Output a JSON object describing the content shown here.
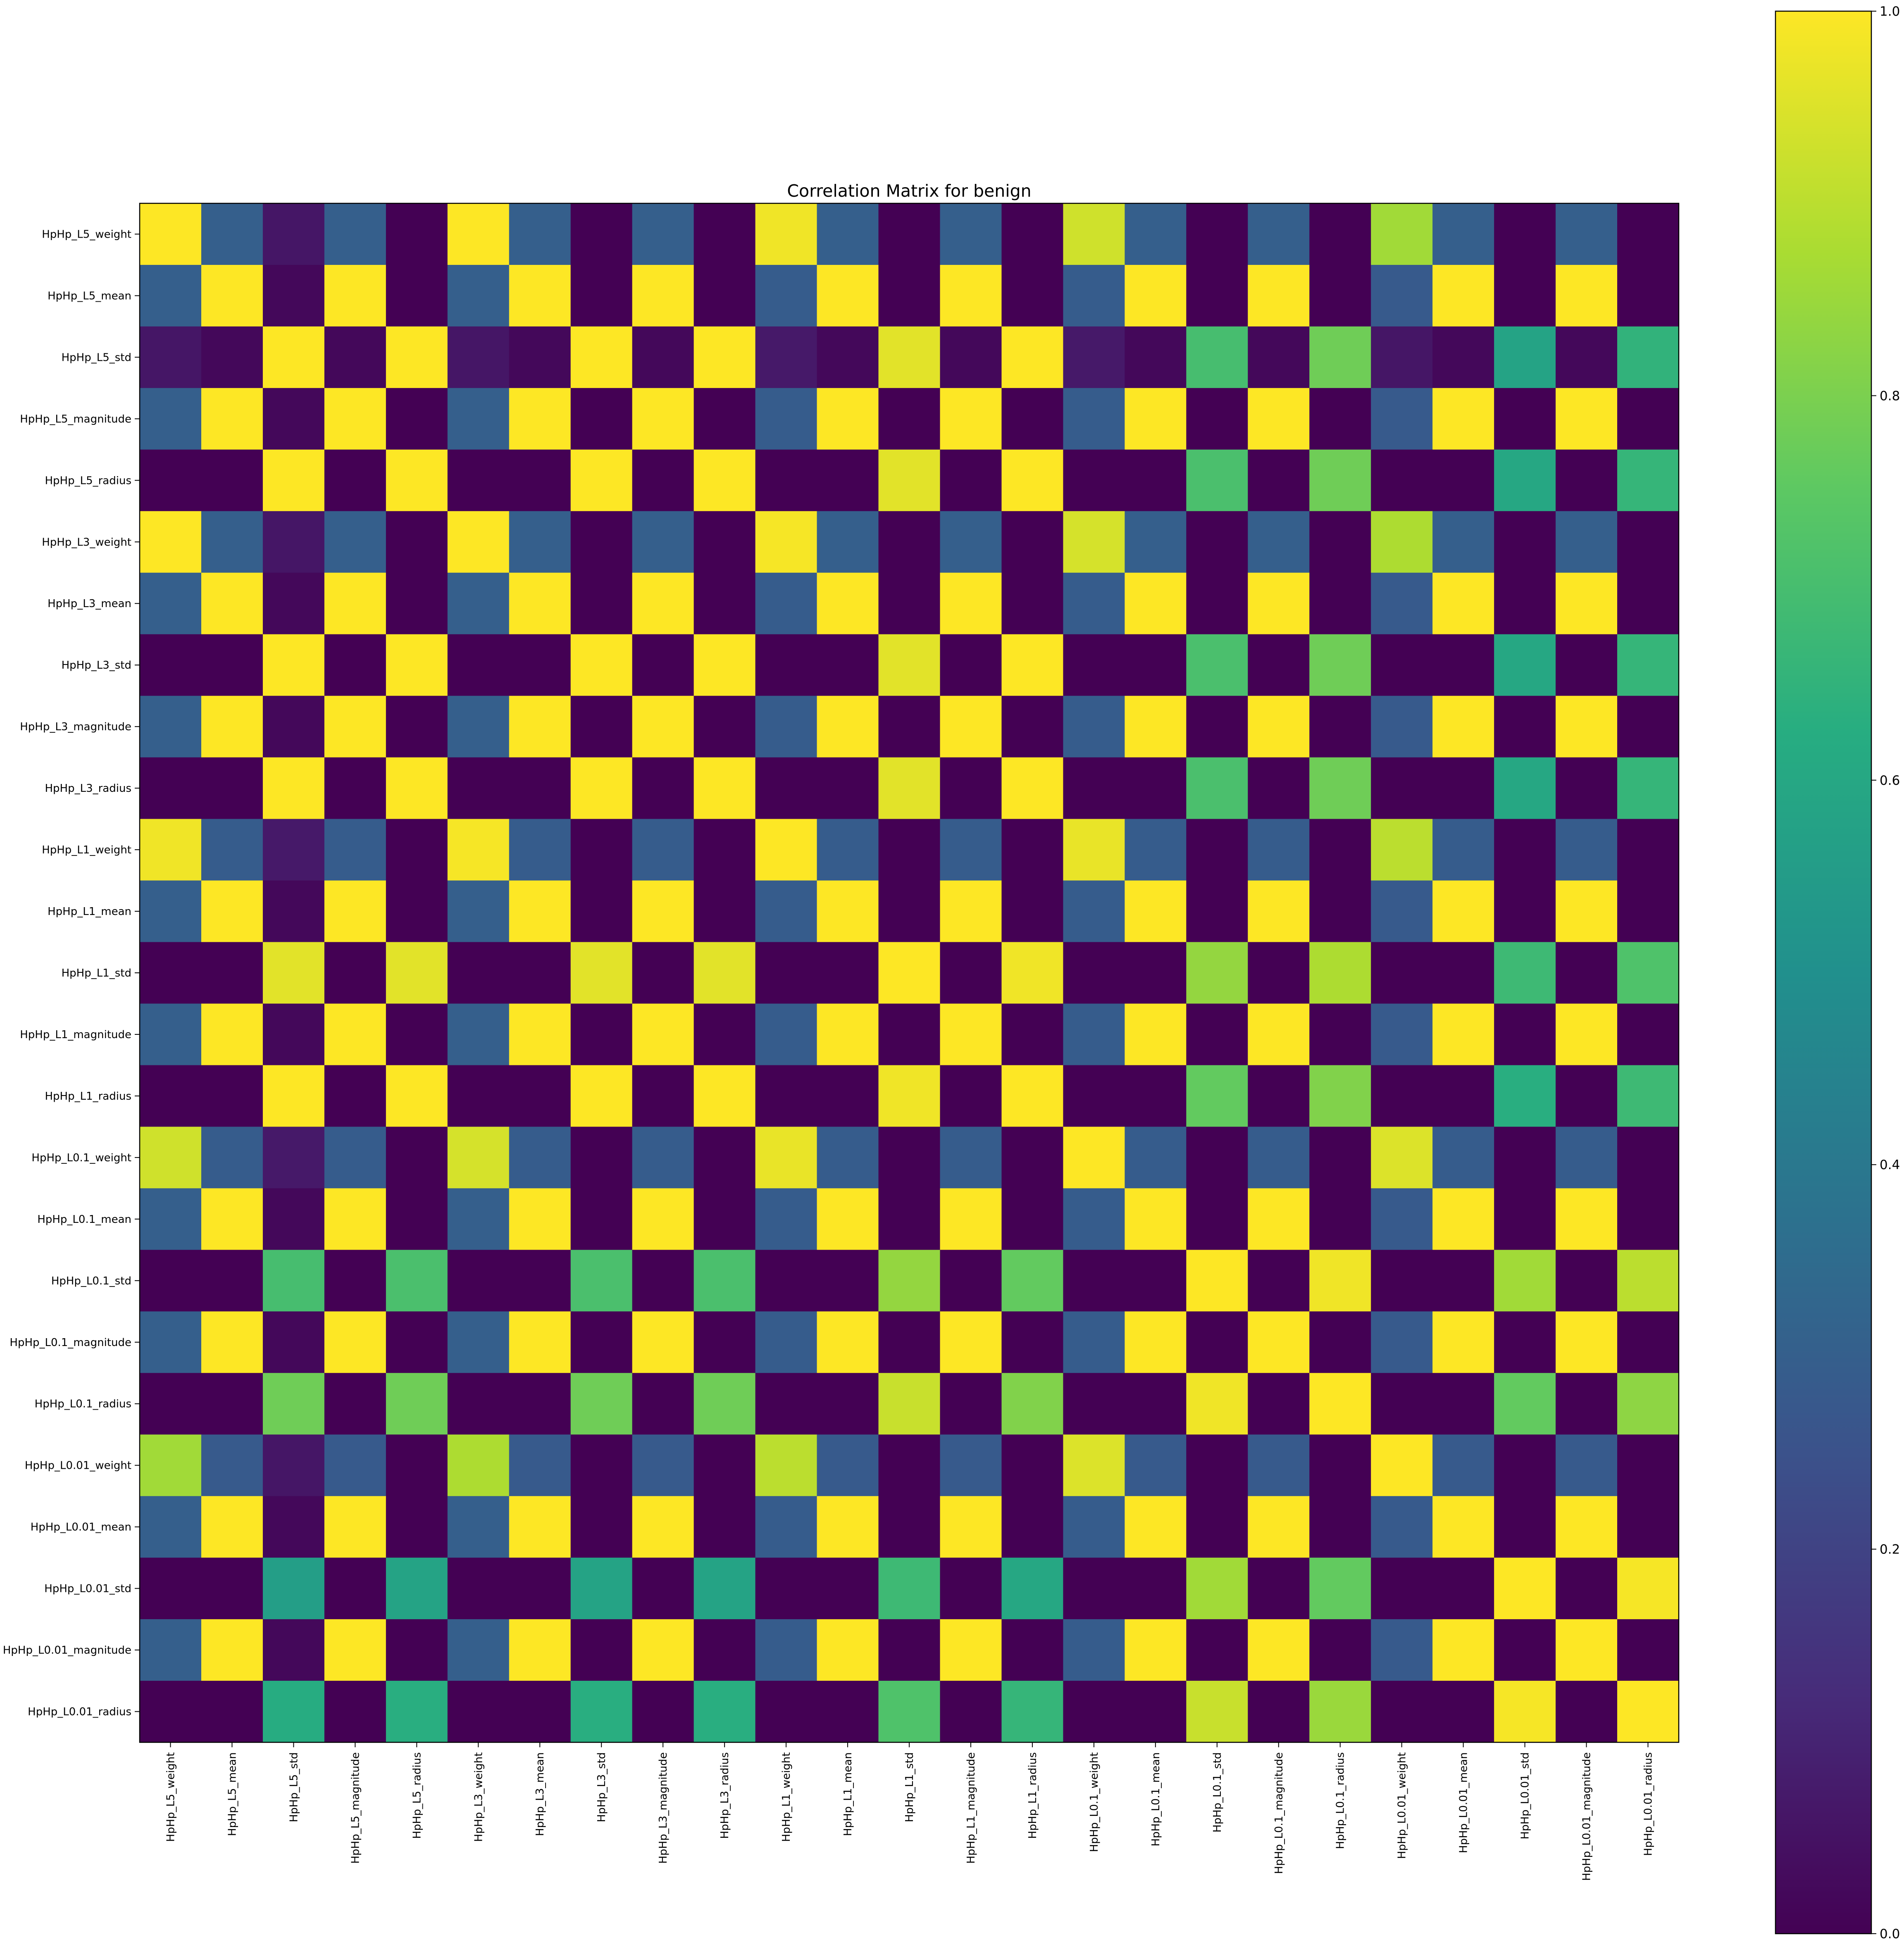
{
  "chart_data": {
    "type": "heatmap",
    "title": "Correlation Matrix for benign",
    "labels": [
      "HpHp_L5_weight",
      "HpHp_L5_mean",
      "HpHp_L5_std",
      "HpHp_L5_magnitude",
      "HpHp_L5_radius",
      "HpHp_L3_weight",
      "HpHp_L3_mean",
      "HpHp_L3_std",
      "HpHp_L3_magnitude",
      "HpHp_L3_radius",
      "HpHp_L1_weight",
      "HpHp_L1_mean",
      "HpHp_L1_std",
      "HpHp_L1_magnitude",
      "HpHp_L1_radius",
      "HpHp_L0.1_weight",
      "HpHp_L0.1_mean",
      "HpHp_L0.1_std",
      "HpHp_L0.1_magnitude",
      "HpHp_L0.1_radius",
      "HpHp_L0.01_weight",
      "HpHp_L0.01_mean",
      "HpHp_L0.01_std",
      "HpHp_L0.01_magnitude",
      "HpHp_L0.01_radius"
    ],
    "values": [
      [
        1.0,
        0.3,
        0.06,
        0.3,
        0.0,
        1.0,
        0.3,
        0.0,
        0.3,
        0.0,
        0.98,
        0.3,
        0.0,
        0.3,
        0.0,
        0.93,
        0.3,
        0.0,
        0.3,
        0.0,
        0.86,
        0.3,
        0.0,
        0.3,
        0.0
      ],
      [
        0.3,
        1.0,
        0.02,
        1.0,
        0.0,
        0.3,
        1.0,
        0.0,
        1.0,
        0.0,
        0.29,
        1.0,
        0.0,
        1.0,
        0.0,
        0.29,
        1.0,
        0.0,
        1.0,
        0.0,
        0.28,
        1.0,
        0.0,
        1.0,
        0.0
      ],
      [
        0.06,
        0.02,
        1.0,
        0.02,
        1.0,
        0.06,
        0.02,
        1.0,
        0.02,
        1.0,
        0.07,
        0.02,
        0.96,
        0.02,
        1.0,
        0.07,
        0.02,
        0.7,
        0.02,
        0.78,
        0.06,
        0.02,
        0.58,
        0.02,
        0.65
      ],
      [
        0.3,
        1.0,
        0.02,
        1.0,
        0.0,
        0.3,
        1.0,
        0.0,
        1.0,
        0.0,
        0.29,
        1.0,
        0.0,
        1.0,
        0.0,
        0.29,
        1.0,
        0.0,
        1.0,
        0.0,
        0.28,
        1.0,
        0.0,
        1.0,
        0.0
      ],
      [
        0.0,
        0.0,
        1.0,
        0.0,
        1.0,
        0.0,
        0.0,
        1.0,
        0.0,
        1.0,
        0.0,
        0.0,
        0.96,
        0.0,
        1.0,
        0.0,
        0.0,
        0.71,
        0.0,
        0.78,
        0.0,
        0.0,
        0.6,
        0.0,
        0.66
      ],
      [
        1.0,
        0.3,
        0.06,
        0.3,
        0.0,
        1.0,
        0.3,
        0.0,
        0.3,
        0.0,
        0.99,
        0.3,
        0.0,
        0.3,
        0.0,
        0.94,
        0.3,
        0.0,
        0.3,
        0.0,
        0.88,
        0.3,
        0.0,
        0.3,
        0.0
      ],
      [
        0.3,
        1.0,
        0.02,
        1.0,
        0.0,
        0.3,
        1.0,
        0.0,
        1.0,
        0.0,
        0.29,
        1.0,
        0.0,
        1.0,
        0.0,
        0.29,
        1.0,
        0.0,
        1.0,
        0.0,
        0.28,
        1.0,
        0.0,
        1.0,
        0.0
      ],
      [
        0.0,
        0.0,
        1.0,
        0.0,
        1.0,
        0.0,
        0.0,
        1.0,
        0.0,
        1.0,
        0.0,
        0.0,
        0.96,
        0.0,
        1.0,
        0.0,
        0.0,
        0.71,
        0.0,
        0.78,
        0.0,
        0.0,
        0.6,
        0.0,
        0.66
      ],
      [
        0.3,
        1.0,
        0.02,
        1.0,
        0.0,
        0.3,
        1.0,
        0.0,
        1.0,
        0.0,
        0.29,
        1.0,
        0.0,
        1.0,
        0.0,
        0.29,
        1.0,
        0.0,
        1.0,
        0.0,
        0.28,
        1.0,
        0.0,
        1.0,
        0.0
      ],
      [
        0.0,
        0.0,
        1.0,
        0.0,
        1.0,
        0.0,
        0.0,
        1.0,
        0.0,
        1.0,
        0.0,
        0.0,
        0.96,
        0.0,
        1.0,
        0.0,
        0.0,
        0.71,
        0.0,
        0.78,
        0.0,
        0.0,
        0.6,
        0.0,
        0.66
      ],
      [
        0.98,
        0.29,
        0.07,
        0.29,
        0.0,
        0.99,
        0.29,
        0.0,
        0.29,
        0.0,
        1.0,
        0.29,
        0.0,
        0.29,
        0.0,
        0.97,
        0.29,
        0.0,
        0.29,
        0.0,
        0.9,
        0.29,
        0.0,
        0.29,
        0.0
      ],
      [
        0.3,
        1.0,
        0.02,
        1.0,
        0.0,
        0.3,
        1.0,
        0.0,
        1.0,
        0.0,
        0.29,
        1.0,
        0.0,
        1.0,
        0.0,
        0.29,
        1.0,
        0.0,
        1.0,
        0.0,
        0.28,
        1.0,
        0.0,
        1.0,
        0.0
      ],
      [
        0.0,
        0.0,
        0.96,
        0.0,
        0.96,
        0.0,
        0.0,
        0.96,
        0.0,
        0.96,
        0.0,
        0.0,
        1.0,
        0.0,
        0.98,
        0.0,
        0.0,
        0.84,
        0.0,
        0.88,
        0.0,
        0.0,
        0.68,
        0.0,
        0.72
      ],
      [
        0.3,
        1.0,
        0.02,
        1.0,
        0.0,
        0.3,
        1.0,
        0.0,
        1.0,
        0.0,
        0.29,
        1.0,
        0.0,
        1.0,
        0.0,
        0.29,
        1.0,
        0.0,
        1.0,
        0.0,
        0.28,
        1.0,
        0.0,
        1.0,
        0.0
      ],
      [
        0.0,
        0.0,
        1.0,
        0.0,
        1.0,
        0.0,
        0.0,
        1.0,
        0.0,
        1.0,
        0.0,
        0.0,
        0.98,
        0.0,
        1.0,
        0.0,
        0.0,
        0.76,
        0.0,
        0.81,
        0.0,
        0.0,
        0.63,
        0.0,
        0.68
      ],
      [
        0.93,
        0.29,
        0.07,
        0.29,
        0.0,
        0.94,
        0.29,
        0.0,
        0.29,
        0.0,
        0.97,
        0.29,
        0.0,
        0.29,
        0.0,
        1.0,
        0.29,
        0.0,
        0.29,
        0.0,
        0.95,
        0.29,
        0.0,
        0.29,
        0.0
      ],
      [
        0.3,
        1.0,
        0.02,
        1.0,
        0.0,
        0.3,
        1.0,
        0.0,
        1.0,
        0.0,
        0.29,
        1.0,
        0.0,
        1.0,
        0.0,
        0.29,
        1.0,
        0.0,
        1.0,
        0.0,
        0.28,
        1.0,
        0.0,
        1.0,
        0.0
      ],
      [
        0.0,
        0.0,
        0.7,
        0.0,
        0.71,
        0.0,
        0.0,
        0.71,
        0.0,
        0.71,
        0.0,
        0.0,
        0.84,
        0.0,
        0.76,
        0.0,
        0.0,
        1.0,
        0.0,
        0.98,
        0.0,
        0.0,
        0.86,
        0.0,
        0.9
      ],
      [
        0.3,
        1.0,
        0.02,
        1.0,
        0.0,
        0.3,
        1.0,
        0.0,
        1.0,
        0.0,
        0.29,
        1.0,
        0.0,
        1.0,
        0.0,
        0.29,
        1.0,
        0.0,
        1.0,
        0.0,
        0.28,
        1.0,
        0.0,
        1.0,
        0.0
      ],
      [
        0.0,
        0.0,
        0.78,
        0.0,
        0.78,
        0.0,
        0.0,
        0.78,
        0.0,
        0.78,
        0.0,
        0.0,
        0.92,
        0.0,
        0.81,
        0.0,
        0.0,
        0.98,
        0.0,
        1.0,
        0.0,
        0.0,
        0.76,
        0.0,
        0.83
      ],
      [
        0.86,
        0.28,
        0.06,
        0.28,
        0.0,
        0.88,
        0.28,
        0.0,
        0.28,
        0.0,
        0.9,
        0.28,
        0.0,
        0.28,
        0.0,
        0.95,
        0.28,
        0.0,
        0.28,
        0.0,
        1.0,
        0.28,
        0.0,
        0.28,
        0.0
      ],
      [
        0.3,
        1.0,
        0.02,
        1.0,
        0.0,
        0.3,
        1.0,
        0.0,
        1.0,
        0.0,
        0.29,
        1.0,
        0.0,
        1.0,
        0.0,
        0.29,
        1.0,
        0.0,
        1.0,
        0.0,
        0.28,
        1.0,
        0.0,
        1.0,
        0.0
      ],
      [
        0.0,
        0.0,
        0.56,
        0.0,
        0.58,
        0.0,
        0.0,
        0.58,
        0.0,
        0.58,
        0.0,
        0.0,
        0.68,
        0.0,
        0.6,
        0.0,
        0.0,
        0.86,
        0.0,
        0.76,
        0.0,
        0.0,
        1.0,
        0.0,
        0.99
      ],
      [
        0.3,
        1.0,
        0.02,
        1.0,
        0.0,
        0.3,
        1.0,
        0.0,
        1.0,
        0.0,
        0.29,
        1.0,
        0.0,
        1.0,
        0.0,
        0.29,
        1.0,
        0.0,
        1.0,
        0.0,
        0.28,
        1.0,
        0.0,
        1.0,
        0.0
      ],
      [
        0.0,
        0.0,
        0.62,
        0.0,
        0.63,
        0.0,
        0.0,
        0.63,
        0.0,
        0.63,
        0.0,
        0.0,
        0.72,
        0.0,
        0.66,
        0.0,
        0.0,
        0.92,
        0.0,
        0.85,
        0.0,
        0.0,
        0.99,
        0.0,
        1.0
      ]
    ],
    "colormap": "viridis",
    "vmin": 0.0,
    "vmax": 1.0,
    "colorbar": {
      "ticks": [
        0.0,
        0.2,
        0.4,
        0.6,
        0.8,
        1.0
      ],
      "tick_labels": [
        "0.0",
        "0.2",
        "0.4",
        "0.6",
        "0.8",
        "1.0"
      ]
    }
  }
}
